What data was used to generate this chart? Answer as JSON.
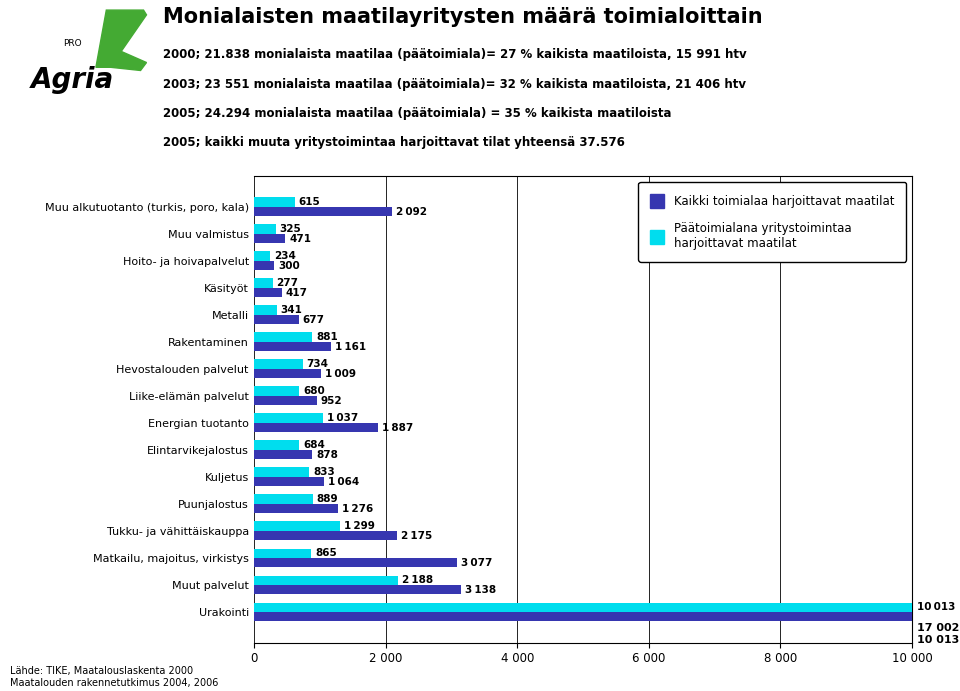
{
  "title": "Monialaisten maatilayritysten määrä toimialoittain",
  "subtitle_lines": [
    "2000; 21.838 monialaista maatilaa (päätoimiala)= 27 % kaikista maatiloista, 15 991 htv",
    "2003; 23 551 monialaista maatilaa (päätoimiala)= 32 % kaikista maatiloista, 21 406 htv",
    "2005; 24.294 monialaista maatilaa (päätoimiala) = 35 % kaikista maatiloista",
    "2005; kaikki muuta yritystoimintaa harjoittavat tilat yhteensä 37.576"
  ],
  "categories": [
    "Muu alkutuotanto (turkis, poro, kala)",
    "Muu valmistus",
    "Hoito- ja hoivapalvelut",
    "Käsityöt",
    "Metalli",
    "Rakentaminen",
    "Hevostalouden palvelut",
    "Liike-elämän palvelut",
    "Energian tuotanto",
    "Elintarvikejalostus",
    "Kuljetus",
    "Puunjalostus",
    "Tukku- ja vähittäiskauppa",
    "Matkailu, majoitus, virkistys",
    "Muut palvelut",
    "Urakointi"
  ],
  "values_all": [
    2092,
    471,
    300,
    417,
    677,
    1161,
    1009,
    952,
    1887,
    878,
    1064,
    1276,
    2175,
    3077,
    3138,
    17002
  ],
  "values_main": [
    615,
    325,
    234,
    277,
    341,
    881,
    734,
    680,
    1037,
    684,
    833,
    889,
    1299,
    865,
    2188,
    10013
  ],
  "color_all": "#3636b0",
  "color_main": "#00ddee",
  "legend_all": "Kaikki toimialaa harjoittavat maatilat",
  "legend_main_line1": "Päätoimialana yritystoimintaa",
  "legend_main_line2": "harjoittavat maatilat",
  "source_text": "Lähde: TIKE, Maatalouslaskenta 2000\nMaatalouden rakennetutkimus 2004, 2006",
  "xlim": [
    0,
    10000
  ],
  "xticks": [
    0,
    2000,
    4000,
    6000,
    8000,
    10000
  ],
  "background_color": "#ffffff",
  "title_fontsize": 15,
  "subtitle_fontsize": 8.5,
  "bar_fontsize": 7.5,
  "axis_fontsize": 8.5,
  "category_fontsize": 8,
  "leaf_color": "#44aa33"
}
